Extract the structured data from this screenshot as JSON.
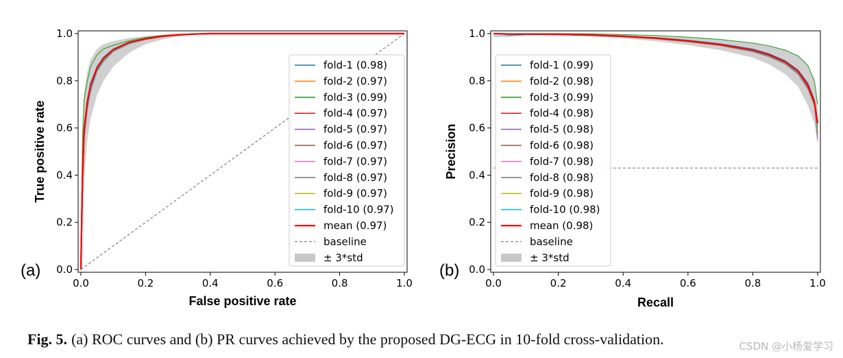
{
  "caption": {
    "label": "Fig. 5.",
    "text": "(a) ROC curves and (b) PR curves achieved by the proposed DG-ECG in 10-fold cross-validation."
  },
  "watermark": "CSDN @小杨爱学习",
  "colors": {
    "fold-1": "#1f77b4",
    "fold-2": "#ff7f0e",
    "fold-3": "#2ca02c",
    "fold-4": "#d62728",
    "fold-5": "#9467bd",
    "fold-6": "#8c564b",
    "fold-7": "#e377c2",
    "fold-8": "#7f7f7f",
    "fold-9": "#bcbd22",
    "fold-10": "#17becf",
    "mean": "#ff0000",
    "baseline": "#808080",
    "band": "#c8c8c8"
  },
  "chart_data": [
    {
      "type": "line",
      "panel_label": "(a)",
      "title": "",
      "xlabel": "False positive rate",
      "ylabel": "True positive rate",
      "xlim": [
        0,
        1
      ],
      "ylim": [
        0,
        1
      ],
      "xticks": [
        "0.0",
        "0.2",
        "0.4",
        "0.6",
        "0.8",
        "1.0"
      ],
      "yticks": [
        "0.0",
        "0.2",
        "0.4",
        "0.6",
        "0.8",
        "1.0"
      ],
      "legend_position": "right",
      "legend": [
        "fold-1 (0.98)",
        "fold-2 (0.97)",
        "fold-3 (0.99)",
        "fold-4 (0.97)",
        "fold-5 (0.97)",
        "fold-6 (0.97)",
        "fold-7 (0.97)",
        "fold-8 (0.97)",
        "fold-9 (0.97)",
        "fold-10 (0.97)",
        "mean (0.97)",
        "baseline",
        "± 3*std"
      ],
      "x": [
        0,
        0.005,
        0.01,
        0.02,
        0.03,
        0.05,
        0.07,
        0.1,
        0.15,
        0.2,
        0.25,
        0.3,
        0.35,
        0.4,
        0.5,
        0.6,
        0.8,
        1.0
      ],
      "series": [
        {
          "name": "fold-1",
          "values": [
            0,
            0.4,
            0.6,
            0.72,
            0.79,
            0.86,
            0.9,
            0.935,
            0.965,
            0.98,
            0.99,
            0.995,
            0.998,
            1.0,
            1.0,
            1.0,
            1.0,
            1.0
          ]
        },
        {
          "name": "fold-2",
          "values": [
            0,
            0.38,
            0.58,
            0.7,
            0.77,
            0.85,
            0.89,
            0.93,
            0.962,
            0.978,
            0.988,
            0.994,
            0.997,
            1.0,
            1.0,
            1.0,
            1.0,
            1.0
          ]
        },
        {
          "name": "fold-3",
          "values": [
            0,
            0.55,
            0.72,
            0.8,
            0.86,
            0.91,
            0.935,
            0.95,
            0.97,
            0.983,
            0.992,
            0.996,
            0.999,
            1.0,
            1.0,
            1.0,
            1.0,
            1.0
          ]
        },
        {
          "name": "fold-4",
          "values": [
            0,
            0.39,
            0.59,
            0.71,
            0.78,
            0.855,
            0.895,
            0.932,
            0.963,
            0.979,
            0.989,
            0.995,
            0.998,
            1.0,
            1.0,
            1.0,
            1.0,
            1.0
          ]
        },
        {
          "name": "fold-5",
          "values": [
            0,
            0.37,
            0.57,
            0.7,
            0.77,
            0.85,
            0.89,
            0.928,
            0.96,
            0.977,
            0.988,
            0.994,
            0.997,
            1.0,
            1.0,
            1.0,
            1.0,
            1.0
          ]
        },
        {
          "name": "fold-6",
          "values": [
            0,
            0.36,
            0.56,
            0.69,
            0.76,
            0.845,
            0.885,
            0.926,
            0.958,
            0.976,
            0.987,
            0.993,
            0.997,
            1.0,
            1.0,
            1.0,
            1.0,
            1.0
          ]
        },
        {
          "name": "fold-7",
          "values": [
            0,
            0.38,
            0.58,
            0.7,
            0.77,
            0.85,
            0.888,
            0.929,
            0.96,
            0.977,
            0.988,
            0.994,
            0.997,
            1.0,
            1.0,
            1.0,
            1.0,
            1.0
          ]
        },
        {
          "name": "fold-8",
          "values": [
            0,
            0.35,
            0.55,
            0.68,
            0.755,
            0.84,
            0.882,
            0.924,
            0.957,
            0.975,
            0.986,
            0.993,
            0.997,
            1.0,
            1.0,
            1.0,
            1.0,
            1.0
          ]
        },
        {
          "name": "fold-9",
          "values": [
            0,
            0.37,
            0.57,
            0.695,
            0.765,
            0.848,
            0.887,
            0.927,
            0.959,
            0.976,
            0.987,
            0.993,
            0.997,
            1.0,
            1.0,
            1.0,
            1.0,
            1.0
          ]
        },
        {
          "name": "fold-10",
          "values": [
            0,
            0.36,
            0.56,
            0.69,
            0.76,
            0.846,
            0.886,
            0.927,
            0.959,
            0.976,
            0.987,
            0.993,
            0.997,
            1.0,
            1.0,
            1.0,
            1.0,
            1.0
          ]
        },
        {
          "name": "mean",
          "values": [
            0,
            0.39,
            0.59,
            0.71,
            0.78,
            0.855,
            0.895,
            0.932,
            0.963,
            0.978,
            0.989,
            0.995,
            0.998,
            1.0,
            1.0,
            1.0,
            1.0,
            1.0
          ]
        }
      ],
      "band": {
        "upper": [
          0,
          0.6,
          0.75,
          0.84,
          0.89,
          0.935,
          0.955,
          0.968,
          0.982,
          0.99,
          0.995,
          0.998,
          1.0,
          1.0,
          1.0,
          1.0,
          1.0,
          1.0
        ],
        "lower": [
          0,
          0.18,
          0.38,
          0.55,
          0.64,
          0.74,
          0.8,
          0.86,
          0.92,
          0.955,
          0.975,
          0.988,
          0.995,
          1.0,
          1.0,
          1.0,
          1.0,
          1.0
        ]
      },
      "baseline": {
        "x": [
          0,
          1
        ],
        "y": [
          0,
          1
        ]
      }
    },
    {
      "type": "line",
      "panel_label": "(b)",
      "title": "",
      "xlabel": "Recall",
      "ylabel": "Precision",
      "xlim": [
        0,
        1
      ],
      "ylim": [
        0,
        1
      ],
      "xticks": [
        "0.0",
        "0.2",
        "0.4",
        "0.6",
        "0.8",
        "1.0"
      ],
      "yticks": [
        "0.0",
        "0.2",
        "0.4",
        "0.6",
        "0.8",
        "1.0"
      ],
      "legend_position": "left",
      "legend": [
        "fold-1 (0.99)",
        "fold-2 (0.98)",
        "fold-3 (0.99)",
        "fold-4 (0.98)",
        "fold-5 (0.98)",
        "fold-6 (0.98)",
        "fold-7 (0.98)",
        "fold-8 (0.98)",
        "fold-9 (0.98)",
        "fold-10 (0.98)",
        "mean (0.98)",
        "baseline",
        "± 3*std"
      ],
      "x": [
        0,
        0.05,
        0.1,
        0.2,
        0.3,
        0.4,
        0.5,
        0.6,
        0.7,
        0.8,
        0.85,
        0.9,
        0.94,
        0.97,
        0.99,
        1.0
      ],
      "series": [
        {
          "name": "fold-1",
          "values": [
            1.0,
            0.995,
            0.997,
            0.998,
            0.995,
            0.99,
            0.983,
            0.972,
            0.957,
            0.935,
            0.915,
            0.885,
            0.845,
            0.79,
            0.72,
            0.62
          ]
        },
        {
          "name": "fold-2",
          "values": [
            1.0,
            0.998,
            0.998,
            0.997,
            0.994,
            0.989,
            0.981,
            0.969,
            0.953,
            0.93,
            0.91,
            0.88,
            0.84,
            0.785,
            0.715,
            0.61
          ]
        },
        {
          "name": "fold-3",
          "values": [
            1.0,
            1.0,
            1.0,
            1.0,
            0.999,
            0.996,
            0.992,
            0.985,
            0.975,
            0.96,
            0.948,
            0.93,
            0.905,
            0.865,
            0.8,
            0.7
          ]
        },
        {
          "name": "fold-4",
          "values": [
            1.0,
            0.998,
            0.998,
            0.997,
            0.994,
            0.988,
            0.98,
            0.968,
            0.952,
            0.928,
            0.908,
            0.878,
            0.838,
            0.78,
            0.71,
            0.6
          ]
        },
        {
          "name": "fold-5",
          "values": [
            1.0,
            0.997,
            0.997,
            0.996,
            0.993,
            0.987,
            0.979,
            0.966,
            0.95,
            0.925,
            0.905,
            0.874,
            0.832,
            0.77,
            0.7,
            0.55
          ]
        },
        {
          "name": "fold-6",
          "values": [
            1.0,
            0.997,
            0.997,
            0.996,
            0.993,
            0.987,
            0.979,
            0.967,
            0.951,
            0.927,
            0.906,
            0.876,
            0.835,
            0.775,
            0.705,
            0.58
          ]
        },
        {
          "name": "fold-7",
          "values": [
            1.0,
            0.997,
            0.997,
            0.996,
            0.993,
            0.988,
            0.98,
            0.967,
            0.951,
            0.927,
            0.907,
            0.877,
            0.836,
            0.777,
            0.707,
            0.59
          ]
        },
        {
          "name": "fold-8",
          "values": [
            1.0,
            0.996,
            0.996,
            0.995,
            0.992,
            0.986,
            0.978,
            0.965,
            0.949,
            0.923,
            0.902,
            0.871,
            0.828,
            0.765,
            0.695,
            0.57
          ]
        },
        {
          "name": "fold-9",
          "values": [
            1.0,
            0.997,
            0.997,
            0.996,
            0.993,
            0.987,
            0.979,
            0.966,
            0.95,
            0.926,
            0.905,
            0.875,
            0.834,
            0.774,
            0.704,
            0.59
          ]
        },
        {
          "name": "fold-10",
          "values": [
            0.99,
            0.99,
            0.995,
            0.996,
            0.993,
            0.987,
            0.979,
            0.967,
            0.951,
            0.926,
            0.906,
            0.876,
            0.835,
            0.776,
            0.706,
            0.6
          ]
        },
        {
          "name": "mean",
          "values": [
            1.0,
            0.998,
            0.998,
            0.997,
            0.994,
            0.989,
            0.981,
            0.969,
            0.953,
            0.93,
            0.91,
            0.88,
            0.84,
            0.78,
            0.71,
            0.62
          ]
        }
      ],
      "band": {
        "upper": [
          1.0,
          1.0,
          1.0,
          1.0,
          0.999,
          0.997,
          0.993,
          0.986,
          0.976,
          0.962,
          0.95,
          0.932,
          0.907,
          0.867,
          0.8,
          0.7
        ],
        "lower": [
          1.0,
          0.99,
          0.992,
          0.993,
          0.988,
          0.98,
          0.968,
          0.952,
          0.93,
          0.898,
          0.87,
          0.828,
          0.775,
          0.695,
          0.62,
          0.53
        ]
      },
      "baseline": {
        "x": [
          0,
          1
        ],
        "y": [
          0.43,
          0.43
        ]
      }
    }
  ]
}
